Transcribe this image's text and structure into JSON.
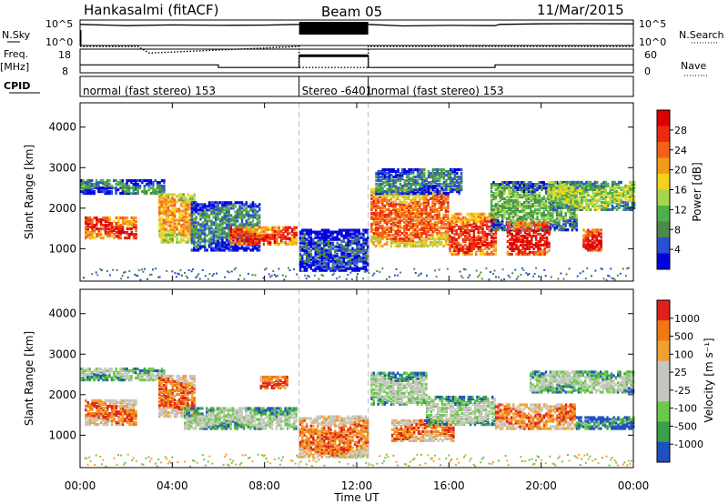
{
  "header": {
    "station": "Hankasalmi (fitACF)",
    "beam": "Beam 05",
    "date": "11/Mar/2015"
  },
  "strips": {
    "nsky": {
      "label": "N.Sky",
      "ticks": [
        "10^5",
        "10^0"
      ],
      "right_ticks": [
        "10^5",
        "10^0"
      ],
      "right_label": "N.Search"
    },
    "freq": {
      "label_top": "Freq.",
      "label_bot": "[MHz]",
      "ticks": [
        "18",
        "8"
      ],
      "right_ticks": [
        "60",
        "0"
      ],
      "right_label": "Nave"
    },
    "cpid": {
      "label": "CPID",
      "segments": [
        {
          "text": "normal (fast stereo) 153",
          "t0": 0.0,
          "t1": 9.5
        },
        {
          "text": "Stereo -6401",
          "t0": 9.5,
          "t1": 12.5
        },
        {
          "text": "normal (fast stereo) 153",
          "t0": 12.5,
          "t1": 24.0
        }
      ]
    }
  },
  "x_axis": {
    "label": "Time UT",
    "ticks": [
      "00:00",
      "04:00",
      "08:00",
      "12:00",
      "16:00",
      "20:00",
      "00:00"
    ]
  },
  "power_panel": {
    "ylabel": "Slant Range [km]",
    "yticks": [
      "4000",
      "3000",
      "2000",
      "1000"
    ],
    "colorbar_label": "Power [dB]",
    "colorbar_ticks": [
      "28",
      "24",
      "20",
      "16",
      "12",
      "8",
      "4"
    ],
    "colors": [
      "#0000dd",
      "#2a4fd0",
      "#4a8a4a",
      "#4fb04a",
      "#a8d64a",
      "#f4d21a",
      "#f49a1a",
      "#f4621a",
      "#ee2a10",
      "#dd0000"
    ]
  },
  "velocity_panel": {
    "ylabel": "Slant Range [km]",
    "yticks": [
      "4000",
      "3000",
      "2000",
      "1000"
    ],
    "colorbar_label": "Velocity  [m s⁻¹]",
    "colorbar_ticks": [
      "1000",
      "500",
      "100",
      "25",
      "-25",
      "-100",
      "-500",
      "-1000"
    ],
    "colors": [
      "#2050c0",
      "#3aa04a",
      "#6cc84a",
      "#c6c6c0",
      "#c6c6c0",
      "#f0a030",
      "#f07a10",
      "#e0201a"
    ]
  },
  "chart_data": [
    {
      "type": "line",
      "title": "N.Sky / N.Search",
      "x_range_hours": [
        0,
        24
      ],
      "notes_series": [
        {
          "name": "N.Sky",
          "x": [
            0,
            2,
            4,
            6,
            8,
            9.5,
            10,
            11,
            12,
            12.5,
            14,
            16,
            18,
            18.2,
            20,
            22,
            24
          ],
          "y": [
            0.9,
            0.85,
            0.88,
            0.86,
            0.87,
            0.9,
            0.95,
            0.95,
            0.95,
            0.9,
            0.84,
            0.86,
            0.85,
            0.9,
            0.92,
            0.93,
            0.92
          ]
        }
      ]
    },
    {
      "type": "line",
      "title": "Freq. [MHz] / Nave",
      "x_range_hours": [
        0,
        24
      ],
      "series": [
        {
          "name": "Freq.",
          "x": [
            0,
            6,
            6,
            9.5,
            9.5,
            12.5,
            12.5,
            18,
            18,
            24
          ],
          "y": [
            10,
            10,
            8,
            8,
            17,
            17,
            8,
            8,
            10,
            10
          ]
        },
        {
          "name": "Nave",
          "x": [
            0,
            2.5,
            3,
            9.5,
            9.5,
            12.5,
            12.5,
            24
          ],
          "y": [
            24,
            24,
            19,
            24,
            8,
            8,
            24,
            24
          ]
        }
      ]
    },
    {
      "type": "heatmap",
      "title": "Power [dB]",
      "ylabel": "Slant Range [km]",
      "xlabel": "Time UT",
      "ylim": [
        200,
        4600
      ],
      "x_range_hours": [
        0,
        24
      ],
      "bands": [
        {
          "t0": 0.0,
          "t1": 3.6,
          "r0": 2400,
          "r1": 2750,
          "level": 2
        },
        {
          "t0": 0.2,
          "t1": 2.4,
          "r0": 1300,
          "r1": 1800,
          "level": 8
        },
        {
          "t0": 3.4,
          "t1": 5.0,
          "r0": 1200,
          "r1": 2400,
          "level": 6
        },
        {
          "t0": 4.8,
          "t1": 7.8,
          "r0": 1000,
          "r1": 2200,
          "level": 2
        },
        {
          "t0": 6.5,
          "t1": 9.4,
          "r0": 1150,
          "r1": 1600,
          "level": 8
        },
        {
          "t0": 9.5,
          "t1": 12.5,
          "r0": 500,
          "r1": 1500,
          "level": 1
        },
        {
          "t0": 12.6,
          "t1": 16.0,
          "r0": 1100,
          "r1": 2500,
          "level": 7
        },
        {
          "t0": 12.8,
          "t1": 16.5,
          "r0": 2400,
          "r1": 3000,
          "level": 2
        },
        {
          "t0": 16.0,
          "t1": 18.0,
          "r0": 900,
          "r1": 1900,
          "level": 8
        },
        {
          "t0": 17.8,
          "t1": 21.5,
          "r0": 1500,
          "r1": 2700,
          "level": 3
        },
        {
          "t0": 18.5,
          "t1": 20.3,
          "r0": 900,
          "r1": 1700,
          "level": 9
        },
        {
          "t0": 20.3,
          "t1": 24.0,
          "r0": 2000,
          "r1": 2700,
          "level": 4
        },
        {
          "t0": 21.8,
          "t1": 22.6,
          "r0": 1000,
          "r1": 1500,
          "level": 9
        }
      ]
    },
    {
      "type": "heatmap",
      "title": "Velocity [m s-1]",
      "ylabel": "Slant Range [km]",
      "xlabel": "Time UT",
      "ylim": [
        200,
        4600
      ],
      "x_range_hours": [
        0,
        24
      ],
      "bands": [
        {
          "t0": 0.0,
          "t1": 3.6,
          "r0": 2400,
          "r1": 2700,
          "level": 3
        },
        {
          "t0": 0.2,
          "t1": 2.4,
          "r0": 1300,
          "r1": 1900,
          "level": 6
        },
        {
          "t0": 3.4,
          "t1": 5.0,
          "r0": 1500,
          "r1": 2500,
          "level": 6
        },
        {
          "t0": 4.5,
          "t1": 9.4,
          "r0": 1200,
          "r1": 1700,
          "level": 3
        },
        {
          "t0": 7.8,
          "t1": 9.0,
          "r0": 2200,
          "r1": 2500,
          "level": 7
        },
        {
          "t0": 9.5,
          "t1": 12.5,
          "r0": 500,
          "r1": 1500,
          "level": 6
        },
        {
          "t0": 12.6,
          "t1": 15.0,
          "r0": 1800,
          "r1": 2600,
          "level": 3
        },
        {
          "t0": 13.5,
          "t1": 16.2,
          "r0": 900,
          "r1": 1400,
          "level": 6
        },
        {
          "t0": 15.0,
          "t1": 18.0,
          "r0": 1300,
          "r1": 2000,
          "level": 3
        },
        {
          "t0": 18.0,
          "t1": 21.5,
          "r0": 1200,
          "r1": 1800,
          "level": 6
        },
        {
          "t0": 19.5,
          "t1": 24.0,
          "r0": 2100,
          "r1": 2600,
          "level": 3
        },
        {
          "t0": 21.5,
          "t1": 24.0,
          "r0": 1200,
          "r1": 1500,
          "level": 1
        }
      ]
    }
  ]
}
